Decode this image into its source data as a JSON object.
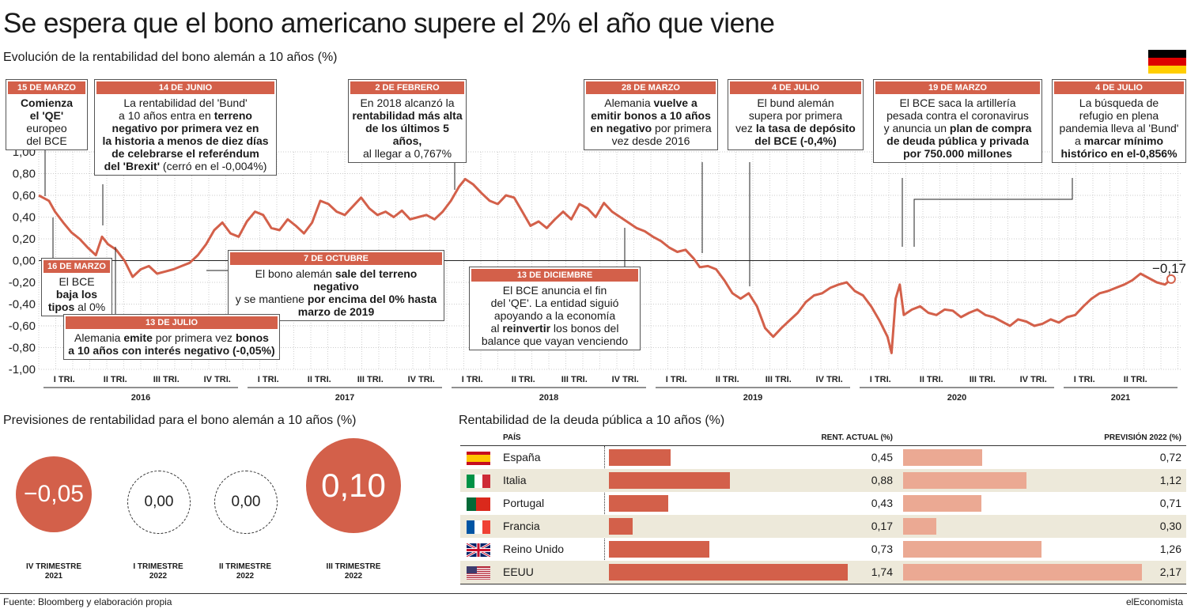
{
  "title": "Se espera que el bono americano supere el 2% el año que viene",
  "subtitle": "Evolución de la rentabilidad del bono alemán a 10 años (%)",
  "flag_colors": [
    "#000000",
    "#dd0000",
    "#ffce00"
  ],
  "colors": {
    "accent": "#d3604a",
    "accent_light": "#eba993",
    "row_alt": "#ede9da"
  },
  "chart_data": {
    "type": "line",
    "ylim": [
      -1.0,
      1.0
    ],
    "yticks": [
      "1,00",
      "0,80",
      "0,60",
      "0,40",
      "0,20",
      "0,00",
      "-0,20",
      "-0,40",
      "-0,60",
      "-0,80",
      "-1,00"
    ],
    "quarters": [
      "I TRI.",
      "II TRI.",
      "III TRI.",
      "IV TRI.",
      "I TRI.",
      "II TRI.",
      "III TRI.",
      "IV TRI.",
      "I TRI.",
      "II TRI.",
      "III TRI.",
      "IV TRI.",
      "I TRI.",
      "II TRI.",
      "III TRI.",
      "IV TRI.",
      "I TRI.",
      "II TRI.",
      "III TRI.",
      "IV TRI.",
      "I TRI.",
      "II TRI."
    ],
    "years": [
      "2016",
      "2017",
      "2018",
      "2019",
      "2020",
      "2021"
    ],
    "last_value_label": "−0,17",
    "series": [
      {
        "x": [
          2016.0,
          2016.02,
          2016.05,
          2016.08,
          2016.12,
          2016.16,
          2016.2,
          2016.24,
          2016.28,
          2016.31,
          2016.34,
          2016.38,
          2016.42,
          2016.46,
          2016.5,
          2016.54,
          2016.58,
          2016.62,
          2016.66,
          2016.7,
          2016.74,
          2016.78,
          2016.82,
          2016.86,
          2016.9,
          2016.94,
          2016.98,
          2017.02,
          2017.06,
          2017.1,
          2017.14,
          2017.18,
          2017.22,
          2017.26,
          2017.3,
          2017.34,
          2017.38,
          2017.42,
          2017.46,
          2017.5,
          2017.54,
          2017.58,
          2017.62,
          2017.66,
          2017.7,
          2017.74,
          2017.78,
          2017.82,
          2017.86,
          2017.9,
          2017.94,
          2017.98,
          2018.02,
          2018.06,
          2018.09,
          2018.13,
          2018.17,
          2018.21,
          2018.25,
          2018.29,
          2018.33,
          2018.37,
          2018.41,
          2018.45,
          2018.49,
          2018.53,
          2018.57,
          2018.61,
          2018.65,
          2018.69,
          2018.73,
          2018.77,
          2018.81,
          2018.85,
          2018.89,
          2018.93,
          2018.97,
          2019.01,
          2019.05,
          2019.09,
          2019.13,
          2019.17,
          2019.21,
          2019.24,
          2019.28,
          2019.32,
          2019.36,
          2019.4,
          2019.44,
          2019.48,
          2019.52,
          2019.56,
          2019.6,
          2019.64,
          2019.68,
          2019.72,
          2019.76,
          2019.8,
          2019.84,
          2019.88,
          2019.92,
          2019.96,
          2020.0,
          2020.04,
          2020.08,
          2020.12,
          2020.16,
          2020.18,
          2020.2,
          2020.22,
          2020.24,
          2020.28,
          2020.32,
          2020.36,
          2020.4,
          2020.44,
          2020.48,
          2020.52,
          2020.56,
          2020.6,
          2020.64,
          2020.68,
          2020.72,
          2020.76,
          2020.8,
          2020.84,
          2020.88,
          2020.92,
          2020.96,
          2021.0,
          2021.04,
          2021.08,
          2021.12,
          2021.16,
          2021.2,
          2021.24,
          2021.28,
          2021.32,
          2021.36,
          2021.4,
          2021.44,
          2021.48,
          2021.52,
          2021.55
        ],
        "y": [
          0.6,
          0.58,
          0.55,
          0.45,
          0.35,
          0.26,
          0.2,
          0.12,
          0.05,
          0.22,
          0.15,
          0.1,
          0.0,
          -0.15,
          -0.08,
          -0.05,
          -0.12,
          -0.1,
          -0.08,
          -0.05,
          -0.02,
          0.05,
          0.15,
          0.28,
          0.35,
          0.25,
          0.22,
          0.36,
          0.45,
          0.42,
          0.3,
          0.28,
          0.38,
          0.32,
          0.25,
          0.35,
          0.55,
          0.52,
          0.45,
          0.42,
          0.5,
          0.58,
          0.48,
          0.42,
          0.45,
          0.4,
          0.46,
          0.38,
          0.4,
          0.42,
          0.38,
          0.45,
          0.55,
          0.68,
          0.75,
          0.7,
          0.62,
          0.55,
          0.52,
          0.6,
          0.58,
          0.45,
          0.32,
          0.36,
          0.3,
          0.38,
          0.45,
          0.38,
          0.52,
          0.48,
          0.4,
          0.53,
          0.45,
          0.4,
          0.35,
          0.3,
          0.27,
          0.22,
          0.18,
          0.12,
          0.08,
          0.1,
          0.02,
          -0.06,
          -0.05,
          -0.08,
          -0.18,
          -0.3,
          -0.35,
          -0.3,
          -0.42,
          -0.62,
          -0.7,
          -0.62,
          -0.55,
          -0.48,
          -0.38,
          -0.32,
          -0.3,
          -0.25,
          -0.22,
          -0.2,
          -0.28,
          -0.32,
          -0.42,
          -0.55,
          -0.7,
          -0.85,
          -0.35,
          -0.22,
          -0.5,
          -0.45,
          -0.42,
          -0.48,
          -0.5,
          -0.45,
          -0.46,
          -0.52,
          -0.48,
          -0.45,
          -0.5,
          -0.52,
          -0.56,
          -0.6,
          -0.54,
          -0.56,
          -0.6,
          -0.58,
          -0.54,
          -0.57,
          -0.52,
          -0.5,
          -0.42,
          -0.35,
          -0.3,
          -0.28,
          -0.25,
          -0.22,
          -0.18,
          -0.12,
          -0.16,
          -0.2,
          -0.22,
          -0.17
        ]
      }
    ]
  },
  "annotations": [
    {
      "date": "15 DE MARZO",
      "text": "Comienza el 'QE' europeo del BCE"
    },
    {
      "date": "14 DE JUNIO",
      "text": "La rentabilidad del 'Bund' a 10 años entra en terreno negativo por primera vez en la historia a menos de diez días de celebrarse el referéndum del 'Brexit' (cerró en el -0,004%)"
    },
    {
      "date": "2 DE FEBRERO",
      "text": "En 2018 alcanzó la rentabilidad más alta de los últimos 5 años, al llegar a 0,767%"
    },
    {
      "date": "28 DE MARZO",
      "text": "Alemania vuelve a emitir bonos a 10 años en negativo por primera vez desde 2016"
    },
    {
      "date": "4 DE JULIO",
      "text": "El bund alemán supera por primera vez la tasa de depósito del BCE (-0,4%)"
    },
    {
      "date": "19 DE MARZO",
      "text": "El BCE saca la artillería pesada contra el coronavirus y anuncia un plan de compra de deuda pública y privada por 750.000 millones"
    },
    {
      "date": "4 DE JULIO",
      "text": "La búsqueda de refugio en plena pandemia lleva al 'Bund' a marcar mínimo histórico en el-0,856%"
    },
    {
      "date": "16 DE MARZO",
      "text": "El BCE baja los tipos al 0%"
    },
    {
      "date": "7 DE OCTUBRE",
      "text": "El bono alemán sale del terreno negativo y se mantiene por encima del 0% hasta marzo de 2019"
    },
    {
      "date": "13 DE DICIEMBRE",
      "text": "El BCE anuncia el fin del 'QE'. La entidad siguió apoyando a la economía al reinvertir los bonos del balance que vayan venciendo"
    },
    {
      "date": "13 DE JULIO",
      "text": "Alemania emite por primera vez bonos a 10 años con interés negativo (-0,05%)"
    }
  ],
  "forecast": {
    "title": "Previsiones de rentabilidad para el bono alemán a 10 años (%)",
    "items": [
      {
        "value": "−0,05",
        "label1": "IV TRIMESTRE",
        "label2": "2021"
      },
      {
        "value": "0,00",
        "label1": "I TRIMESTRE",
        "label2": "2022"
      },
      {
        "value": "0,00",
        "label1": "II TRIMESTRE",
        "label2": "2022"
      },
      {
        "value": "0,10",
        "label1": "III TRIMESTRE",
        "label2": "2022"
      }
    ]
  },
  "debt_table": {
    "title": "Rentabilidad de la deuda pública a 10 años (%)",
    "col_country": "PAÍS",
    "col_current": "RENT. ACTUAL (%)",
    "col_forecast": "PREVISIÓN 2022 (%)",
    "rows": [
      {
        "country": "España",
        "current": 0.45,
        "current_label": "0,45",
        "forecast": 0.72,
        "forecast_label": "0,72",
        "flag_icon": "spain-flag-icon"
      },
      {
        "country": "Italia",
        "current": 0.88,
        "current_label": "0,88",
        "forecast": 1.12,
        "forecast_label": "1,12",
        "flag_icon": "italy-flag-icon"
      },
      {
        "country": "Portugal",
        "current": 0.43,
        "current_label": "0,43",
        "forecast": 0.71,
        "forecast_label": "0,71",
        "flag_icon": "portugal-flag-icon"
      },
      {
        "country": "Francia",
        "current": 0.17,
        "current_label": "0,17",
        "forecast": 0.3,
        "forecast_label": "0,30",
        "flag_icon": "france-flag-icon"
      },
      {
        "country": "Reino Unido",
        "current": 0.73,
        "current_label": "0,73",
        "forecast": 1.26,
        "forecast_label": "1,26",
        "flag_icon": "uk-flag-icon"
      },
      {
        "country": "EEUU",
        "current": 1.74,
        "current_label": "1,74",
        "forecast": 2.17,
        "forecast_label": "2,17",
        "flag_icon": "usa-flag-icon"
      }
    ]
  },
  "source": "Fuente: Bloomberg y elaboración propia",
  "brand": "elEconomista"
}
